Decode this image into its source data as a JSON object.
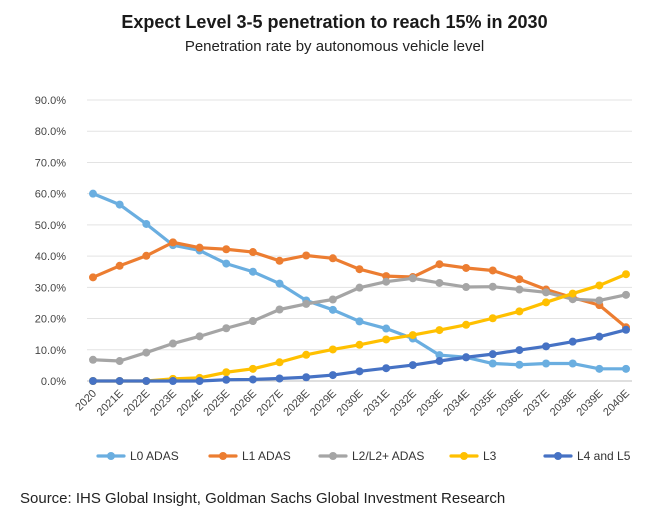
{
  "chart_data": {
    "type": "line",
    "title": "Expect Level 3-5 penetration to reach 15% in 2030",
    "subtitle": "Penetration rate by autonomous vehicle level",
    "xlabel": "",
    "ylabel": "",
    "ylim": [
      0,
      90
    ],
    "yticks": [
      "0.0%",
      "10.0%",
      "20.0%",
      "30.0%",
      "40.0%",
      "50.0%",
      "60.0%",
      "70.0%",
      "80.0%",
      "90.0%"
    ],
    "categories": [
      "2020",
      "2021E",
      "2022E",
      "2023E",
      "2024E",
      "2025E",
      "2026E",
      "2027E",
      "2028E",
      "2029E",
      "2030E",
      "2031E",
      "2032E",
      "2033E",
      "2034E",
      "2035E",
      "2036E",
      "2037E",
      "2038E",
      "2039E",
      "2040E"
    ],
    "grid": true,
    "legend_position": "bottom",
    "series": [
      {
        "name": "L0 ADAS",
        "color": "#6aaee0",
        "values": [
          60.0,
          56.5,
          50.3,
          43.5,
          41.8,
          37.6,
          35.0,
          31.2,
          25.8,
          22.8,
          19.1,
          16.8,
          13.6,
          8.3,
          7.6,
          5.6,
          5.2,
          5.6,
          5.6,
          3.9,
          3.9
        ]
      },
      {
        "name": "L1 ADAS",
        "color": "#ec7d31",
        "values": [
          33.2,
          36.9,
          40.1,
          44.4,
          42.7,
          42.2,
          41.3,
          38.5,
          40.2,
          39.3,
          35.8,
          33.6,
          33.3,
          37.4,
          36.2,
          35.4,
          32.6,
          29.3,
          26.7,
          24.3,
          17.2
        ]
      },
      {
        "name": "L2/L2+ ADAS",
        "color": "#a5a5a5",
        "values": [
          6.8,
          6.4,
          9.1,
          12.0,
          14.3,
          16.9,
          19.2,
          22.9,
          24.7,
          26.1,
          29.9,
          31.8,
          32.9,
          31.4,
          30.1,
          30.2,
          29.3,
          28.4,
          26.2,
          25.8,
          27.6
        ]
      },
      {
        "name": "L3",
        "color": "#ffc000",
        "values": [
          0.0,
          0.0,
          0.0,
          0.7,
          1.0,
          2.8,
          3.9,
          6.0,
          8.4,
          10.1,
          11.6,
          13.3,
          14.7,
          16.3,
          18.0,
          20.1,
          22.3,
          25.2,
          28.0,
          30.6,
          34.2
        ]
      },
      {
        "name": "L4 and L5",
        "color": "#4672c4",
        "values": [
          0.0,
          0.0,
          0.0,
          0.0,
          0.0,
          0.4,
          0.5,
          0.8,
          1.2,
          1.9,
          3.1,
          4.1,
          5.1,
          6.4,
          7.6,
          8.6,
          9.9,
          11.1,
          12.6,
          14.2,
          16.4
        ]
      }
    ]
  },
  "source": "Source: IHS Global Insight, Goldman Sachs Global Investment Research"
}
